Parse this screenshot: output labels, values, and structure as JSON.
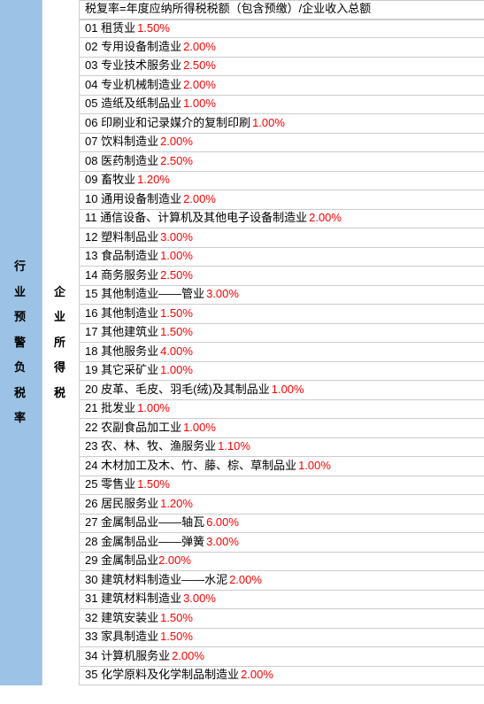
{
  "colors": {
    "col1_bg": "#9cc2e5",
    "rate_color": "#ff0000",
    "text_color": "#000000",
    "border_color": "#cccccc"
  },
  "col1_label": "行业预警负税率",
  "col2_label": "企业所得税",
  "header_text": "税复率=年度应纳所得税税额（包含预缴）/企业收入总额",
  "rows": [
    {
      "num": "01",
      "name": "租赁业",
      "rate": "1.50%"
    },
    {
      "num": "02",
      "name": "专用设备制造业",
      "rate": "2.00%"
    },
    {
      "num": "03",
      "name": "专业技术服务业",
      "rate": "2.50%"
    },
    {
      "num": "04",
      "name": "专业机械制造业",
      "rate": "2.00%"
    },
    {
      "num": "05",
      "name": "造纸及纸制品业",
      "rate": "1.00%"
    },
    {
      "num": "06",
      "name": "印刷业和记录媒介的复制印刷",
      "rate": "1.00%"
    },
    {
      "num": "07",
      "name": "饮料制造业",
      "rate": "2.00%"
    },
    {
      "num": "08",
      "name": "医药制造业",
      "rate": "2.50%"
    },
    {
      "num": "09",
      "name": "畜牧业",
      "rate": "1.20%"
    },
    {
      "num": "10",
      "name": "通用设备制造业",
      "rate": "2.00%"
    },
    {
      "num": "11",
      "name": "通信设备、计算机及其他电子设备制造业",
      "rate": "2.00%"
    },
    {
      "num": "12",
      "name": "塑料制品业",
      "rate": "3.00%"
    },
    {
      "num": "13",
      "name": "食品制造业",
      "rate": "1.00%"
    },
    {
      "num": "14",
      "name": "商务服务业",
      "rate": "2.50%"
    },
    {
      "num": "15",
      "name": "其他制造业——管业",
      "rate": "3.00%"
    },
    {
      "num": "16",
      "name": "其他制造业",
      "rate": "1.50%"
    },
    {
      "num": "17",
      "name": "其他建筑业",
      "rate": "1.50%"
    },
    {
      "num": "18",
      "name": "其他服务业",
      "rate": "4.00%"
    },
    {
      "num": "19",
      "name": "其它采矿业",
      "rate": "1.00%"
    },
    {
      "num": "20",
      "name": "皮革、毛皮、羽毛(绒)及其制品业",
      "rate": "1.00%"
    },
    {
      "num": "21",
      "name": "批发业",
      "rate": "1.00%"
    },
    {
      "num": "22",
      "name": "农副食品加工业",
      "rate": "1.00%"
    },
    {
      "num": "23",
      "name": "农、林、牧、渔服务业",
      "rate": "1.10%"
    },
    {
      "num": "24",
      "name": "木材加工及木、竹、藤、棕、草制品业",
      "rate": "1.00%"
    },
    {
      "num": "25",
      "name": "零售业",
      "rate": "1.50%"
    },
    {
      "num": "26",
      "name": "居民服务业",
      "rate": "1.20%"
    },
    {
      "num": "27",
      "name": "金属制品业——轴瓦",
      "rate": "6.00%"
    },
    {
      "num": "28",
      "name": "金属制品业——弹簧",
      "rate": "3.00%"
    },
    {
      "num": "29",
      "name": "金属制品业",
      "rate": "2.00%",
      "nospace": true
    },
    {
      "num": "30",
      "name": "建筑材料制造业——水泥",
      "rate": "2.00%"
    },
    {
      "num": "31",
      "name": "建筑材料制造业",
      "rate": "3.00%"
    },
    {
      "num": "32",
      "name": "建筑安装业",
      "rate": "1.50%"
    },
    {
      "num": "33",
      "name": "家具制造业",
      "rate": "1.50%"
    },
    {
      "num": "34",
      "name": "计算机服务业",
      "rate": "2.00%"
    },
    {
      "num": "35",
      "name": "化学原料及化学制品制造业",
      "rate": "2.00%"
    }
  ]
}
